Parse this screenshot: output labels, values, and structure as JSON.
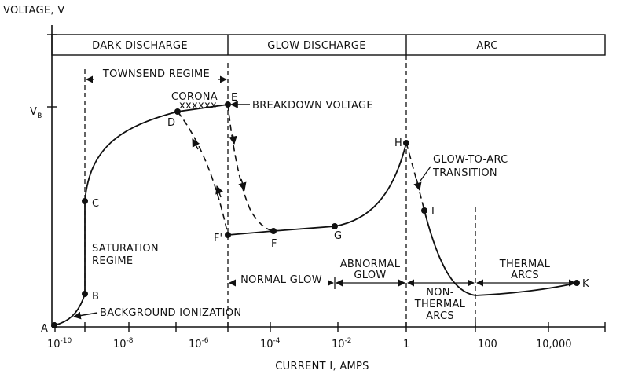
{
  "title": "VOLTAGE, V",
  "x_axis": {
    "label": "CURRENT I, AMPS",
    "ticks": [
      {
        "base": "10",
        "exp": "-10"
      },
      {
        "base": "10",
        "exp": "-8"
      },
      {
        "base": "10",
        "exp": "-6"
      },
      {
        "base": "10",
        "exp": "-4"
      },
      {
        "base": "10",
        "exp": "-2"
      },
      {
        "base": "1",
        "exp": ""
      },
      {
        "base": "100",
        "exp": ""
      },
      {
        "base": "10,000",
        "exp": ""
      }
    ]
  },
  "y_axis": {
    "vb_label": "V",
    "vb_sub": "B"
  },
  "regions": {
    "dark": "DARK DISCHARGE",
    "glow": "GLOW DISCHARGE",
    "arc": "ARC"
  },
  "subregions": {
    "townsend": "TOWNSEND REGIME",
    "normal_glow": "NORMAL GLOW",
    "abnormal_1": "ABNORMAL",
    "abnormal_2": "GLOW",
    "nonthermal_1": "NON-",
    "nonthermal_2": "THERMAL",
    "nonthermal_3": "ARCS",
    "thermal_1": "THERMAL",
    "thermal_2": "ARCS"
  },
  "annotations": {
    "corona": "CORONA",
    "corona_marks": "xxxxxx",
    "breakdown": "BREAKDOWN VOLTAGE",
    "gta_1": "GLOW-TO-ARC",
    "gta_2": "TRANSITION",
    "saturation_1": "SATURATION",
    "saturation_2": "REGIME",
    "background": "BACKGROUND IONIZATION"
  },
  "points": {
    "A": "A",
    "B": "B",
    "C": "C",
    "D": "D",
    "E": "E",
    "F1": "F'",
    "F2": "F",
    "G": "G",
    "H": "H",
    "I": "I",
    "K": "K"
  }
}
